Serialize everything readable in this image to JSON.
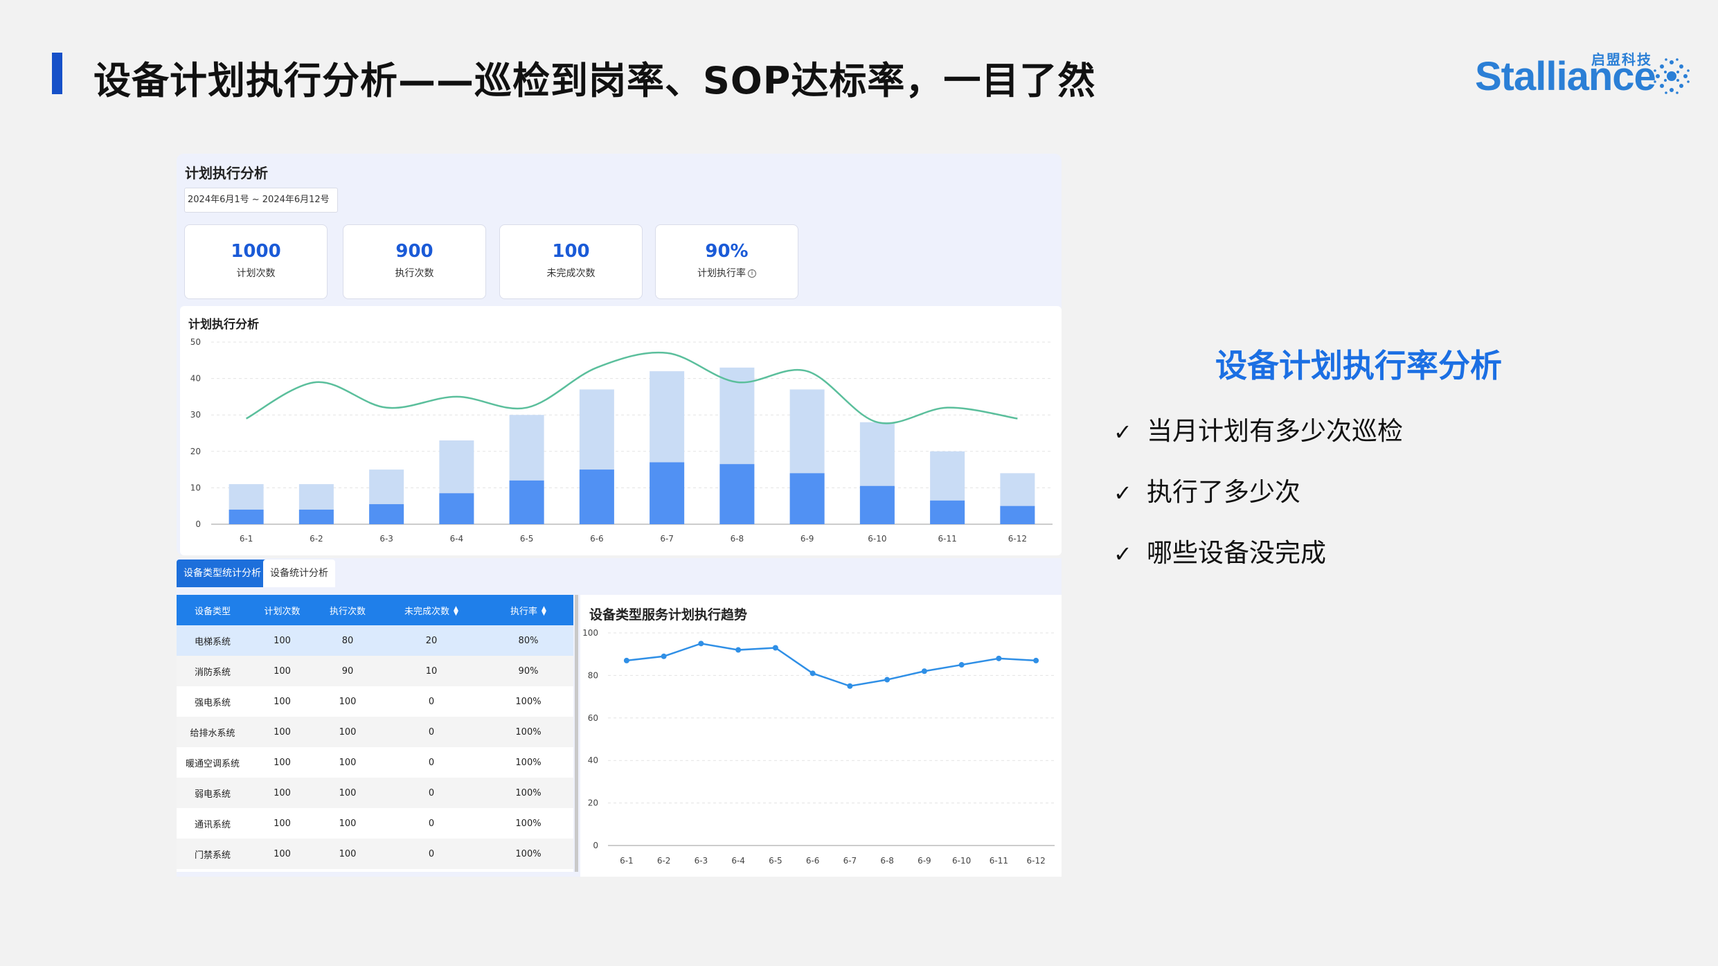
{
  "slide": {
    "title": "设备计划执行分析——巡检到岗率、SOP达标率，一目了然",
    "logo_text": "Stalliance",
    "logo_cn": "启盟科技",
    "accent_color": "#1650c8"
  },
  "dashboard": {
    "title": "计划执行分析",
    "date_range": "2024年6月1号 ~ 2024年6月12号",
    "stats": [
      {
        "value": "1000",
        "label": "计划次数"
      },
      {
        "value": "900",
        "label": "执行次数"
      },
      {
        "value": "100",
        "label": "未完成次数"
      },
      {
        "value": "90%",
        "label": "计划执行率",
        "icon": "info-icon"
      }
    ],
    "tabs": [
      {
        "label": "设备类型统计分析",
        "active": true
      },
      {
        "label": "设备统计分析",
        "active": false
      }
    ],
    "table": {
      "columns": [
        "设备类型",
        "计划次数",
        "执行次数",
        "未完成次数",
        "执行率"
      ],
      "rows": [
        [
          "电梯系统",
          "100",
          "80",
          "20",
          "80%"
        ],
        [
          "消防系统",
          "100",
          "90",
          "10",
          "90%"
        ],
        [
          "强电系统",
          "100",
          "100",
          "0",
          "100%"
        ],
        [
          "给排水系统",
          "100",
          "100",
          "0",
          "100%"
        ],
        [
          "暖通空调系统",
          "100",
          "100",
          "0",
          "100%"
        ],
        [
          "弱电系统",
          "100",
          "100",
          "0",
          "100%"
        ],
        [
          "通讯系统",
          "100",
          "100",
          "0",
          "100%"
        ],
        [
          "门禁系统",
          "100",
          "100",
          "0",
          "100%"
        ]
      ]
    }
  },
  "chart_data": [
    {
      "type": "bar",
      "title": "计划执行分析",
      "categories": [
        "6-1",
        "6-2",
        "6-3",
        "6-4",
        "6-5",
        "6-6",
        "6-7",
        "6-8",
        "6-9",
        "6-10",
        "6-11",
        "6-12"
      ],
      "ylim": [
        0,
        50
      ],
      "yticks": [
        0,
        10,
        20,
        30,
        40,
        50
      ],
      "series": [
        {
          "values": [
            11,
            11,
            15,
            23,
            30,
            37,
            42,
            43,
            37,
            28,
            20,
            14
          ],
          "color": "#c9dcf5"
        },
        {
          "values": [
            4,
            4,
            5.5,
            8.5,
            12,
            15,
            17,
            16.5,
            14,
            10.5,
            6.5,
            5
          ],
          "color": "#5191f3"
        },
        {
          "type": "line",
          "values": [
            29,
            39,
            32,
            35,
            32,
            43,
            47,
            39,
            42,
            28,
            32,
            29
          ],
          "color": "#5bbf9c"
        }
      ],
      "grid": true
    },
    {
      "type": "line",
      "title": "设备类型服务计划执行趋势",
      "categories": [
        "6-1",
        "6-2",
        "6-3",
        "6-4",
        "6-5",
        "6-6",
        "6-7",
        "6-8",
        "6-9",
        "6-10",
        "6-11",
        "6-12"
      ],
      "ylim": [
        0,
        100
      ],
      "yticks": [
        0,
        20,
        40,
        60,
        80,
        100
      ],
      "series": [
        {
          "values": [
            87,
            89,
            95,
            92,
            93,
            81,
            75,
            78,
            82,
            85,
            88,
            87
          ],
          "color": "#2f8fe6"
        }
      ],
      "grid": true
    }
  ],
  "side_panel": {
    "heading": "设备计划执行率分析",
    "bullets": [
      "当月计划有多少次巡检",
      "执行了多少次",
      "哪些设备没完成"
    ],
    "check_glyph": "✓"
  }
}
